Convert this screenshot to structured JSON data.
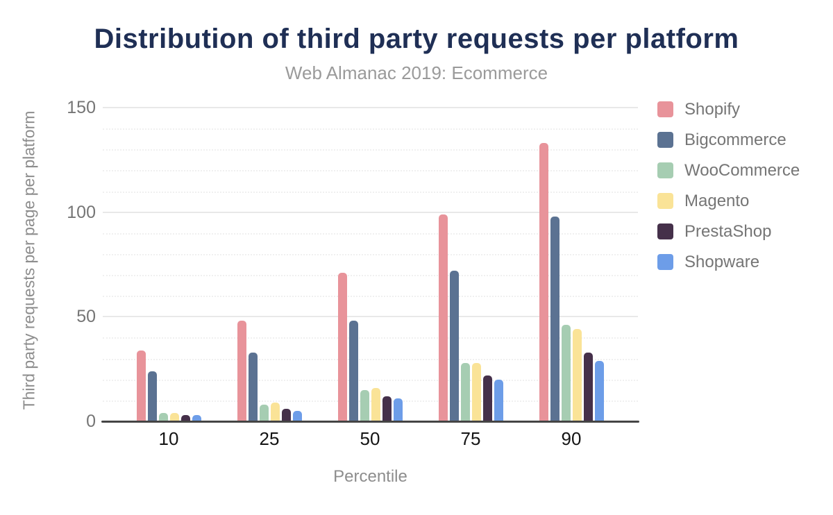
{
  "header": {
    "title": "Distribution of third party requests per platform",
    "subtitle": "Web Almanac 2019: Ecommerce"
  },
  "chart_data": {
    "type": "bar",
    "title": "Distribution of third party requests per platform",
    "subtitle": "Web Almanac 2019: Ecommerce",
    "xlabel": "Percentile",
    "ylabel": "Third party requests per page per platform",
    "categories": [
      "10",
      "25",
      "50",
      "75",
      "90"
    ],
    "series": [
      {
        "name": "Shopify",
        "color": "#E8939A",
        "values": [
          34,
          48,
          71,
          99,
          133
        ]
      },
      {
        "name": "Bigcommerce",
        "color": "#5B7292",
        "values": [
          24,
          33,
          48,
          72,
          98
        ]
      },
      {
        "name": "WooCommerce",
        "color": "#A6CDB2",
        "values": [
          4,
          8,
          15,
          28,
          46
        ]
      },
      {
        "name": "Magento",
        "color": "#FAE397",
        "values": [
          4,
          9,
          16,
          28,
          44
        ]
      },
      {
        "name": "PrestaShop",
        "color": "#45304A",
        "values": [
          3,
          6,
          12,
          22,
          33
        ]
      },
      {
        "name": "Shopware",
        "color": "#6D9DE8",
        "values": [
          3,
          5,
          11,
          20,
          29
        ]
      }
    ],
    "ylim": [
      0,
      150
    ],
    "yticks_major": [
      0,
      50,
      100,
      150
    ],
    "ytick_minor_step": 10,
    "grid": "on",
    "legend_position": "right",
    "colors": {
      "title": "#1F2F55",
      "subtitle": "#9A9A9A",
      "axis_line": "#454545",
      "tick_label": "#757575",
      "major_grid": "#E8E8E8",
      "minor_grid": "#F0F0F0"
    }
  }
}
